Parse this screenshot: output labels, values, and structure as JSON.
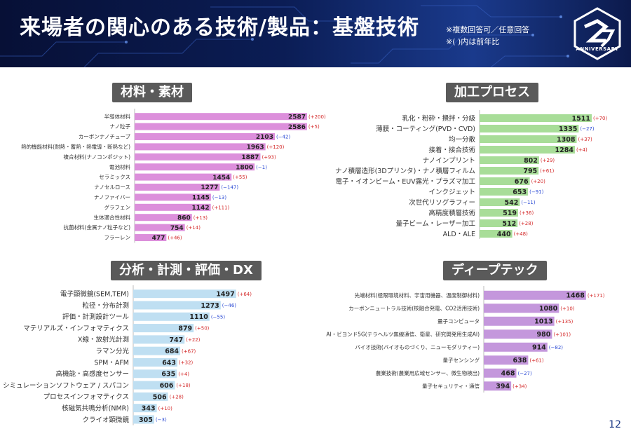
{
  "header": {
    "title": "来場者の関心のある技術/製品：基盤技術",
    "note1": "※複数回答可／任意回答",
    "note2": "※( )内は前年比",
    "logo_text": "ANNIVERSARY"
  },
  "page_number": "12",
  "colors": {
    "materials": "#dc8fdb",
    "processing": "#a8dd98",
    "analysis": "#bfdff2",
    "deeptech": "#c497dc",
    "positive": "#d42a2a",
    "negative": "#2a49d4"
  },
  "chart_data": [
    {
      "type": "bar",
      "orientation": "horizontal",
      "title": "材料・素材",
      "categories": [
        "半導体材料",
        "ナノ粒子",
        "カーボンナノチューブ",
        "熱的機能材料(耐熱・蓄熱・熱電導・断熱など)",
        "複合材料(ナノコンポジット)",
        "電池材料",
        "セラミックス",
        "ナノセルロース",
        "ナノファイバー",
        "グラフェン",
        "生体適合性材料",
        "抗菌材料(金属ナノ粒子など)",
        "フラーレン"
      ],
      "values": [
        2587,
        2586,
        2103,
        1963,
        1887,
        1800,
        1454,
        1277,
        1145,
        1142,
        860,
        754,
        477
      ],
      "deltas": [
        "(+200)",
        "(+5)",
        "(−42)",
        "(+120)",
        "(+93)",
        "(−1)",
        "(+55)",
        "(−147)",
        "(−13)",
        "(+111)",
        "(+13)",
        "(+14)",
        "(+46)"
      ],
      "xlim": [
        0,
        2650
      ]
    },
    {
      "type": "bar",
      "orientation": "horizontal",
      "title": "加工プロセス",
      "categories": [
        "乳化・粉砕・攪拌・分級",
        "薄膜・コーティング(PVD・CVD)",
        "均一分散",
        "接着・接合技術",
        "ナノインプリント",
        "ナノ積層造形(3Dプリンタ)・ナノ積層フィルム",
        "電子・イオンビーム・EUV露光・プラズマ加工",
        "インクジェット",
        "次世代リソグラフィー",
        "高精度積層技術",
        "量子ビーム・レーザー加工",
        "ALD・ALE"
      ],
      "values": [
        1511,
        1335,
        1308,
        1284,
        802,
        795,
        676,
        653,
        542,
        519,
        512,
        440
      ],
      "deltas": [
        "(+70)",
        "(−27)",
        "(+37)",
        "(+4)",
        "(+29)",
        "(+61)",
        "(+20)",
        "(−91)",
        "(−11)",
        "(+36)",
        "(+28)",
        "(+48)"
      ],
      "xlim": [
        0,
        1530
      ]
    },
    {
      "type": "bar",
      "orientation": "horizontal",
      "title": "分析・計測・評価・DX",
      "categories": [
        "電子顕微鏡(SEM,TEM)",
        "粒径・分布計測",
        "評価・計測設計ツール",
        "マテリアルズ・インフォマティクス",
        "X線・放射光計測",
        "ラマン分光",
        "SPM・AFM",
        "高機能・高感度センサー",
        "シミュレーションソフトウェア / スパコン",
        "プロセスインフォマティクス",
        "核磁気共鳴分析(NMR)",
        "クライオ顕微鏡"
      ],
      "values": [
        1497,
        1273,
        1110,
        879,
        747,
        684,
        643,
        635,
        606,
        506,
        343,
        305
      ],
      "deltas": [
        "(+64)",
        "(−46)",
        "(−55)",
        "(+50)",
        "(+22)",
        "(+67)",
        "(+32)",
        "(+4)",
        "(+18)",
        "(+28)",
        "(+10)",
        "(−3)"
      ],
      "xlim": [
        0,
        1530
      ]
    },
    {
      "type": "bar",
      "orientation": "horizontal",
      "title": "ディープテック",
      "categories": [
        "先端材料(極限環境材料、宇宙用機器、温度制御材料)",
        "カーボンニュートラル技術(核融合発電、CO2活用技術)",
        "量子コンピュータ",
        "AI・ビヨンド5G(テラヘルツ無線通信、衛星、研究開発用生成AI)",
        "バイオ技術(バイオものづくり、ニューモダリティー)",
        "量子センシング",
        "農業技術(農業用広域センサー、微生物検出)",
        "量子セキュリティ・通信"
      ],
      "values": [
        1468,
        1080,
        1013,
        980,
        914,
        638,
        468,
        394
      ],
      "deltas": [
        "(+171)",
        "(+10)",
        "(+135)",
        "(+101)",
        "(−82)",
        "(+61)",
        "(−27)",
        "(+34)"
      ],
      "xlim": [
        0,
        1530
      ]
    }
  ]
}
